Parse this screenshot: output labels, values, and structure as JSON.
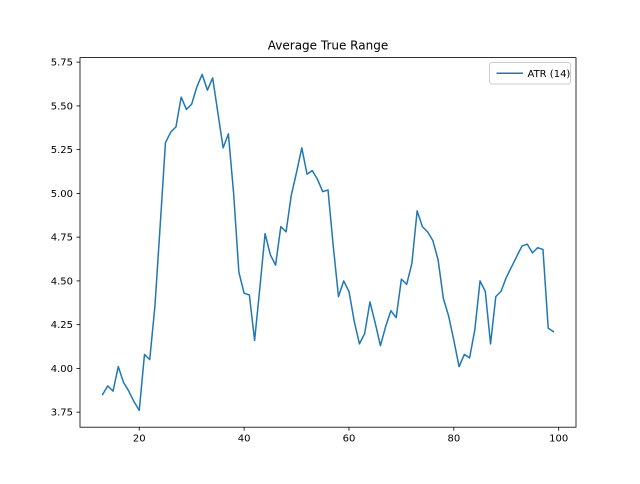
{
  "chart_data": {
    "type": "line",
    "title": "Average True Range",
    "xlabel": "",
    "ylabel": "",
    "xlim": [
      8.7,
      103.3
    ],
    "ylim": [
      3.664,
      5.776
    ],
    "x_ticks": [
      20,
      40,
      60,
      80,
      100
    ],
    "y_ticks": [
      3.75,
      4.0,
      4.25,
      4.5,
      4.75,
      5.0,
      5.25,
      5.5,
      5.75
    ],
    "grid": false,
    "legend_position": "upper right",
    "series": [
      {
        "name": "ATR (14)",
        "color": "#1f77b4",
        "x": [
          13,
          14,
          15,
          16,
          17,
          18,
          19,
          20,
          21,
          22,
          23,
          24,
          25,
          26,
          27,
          28,
          29,
          30,
          31,
          32,
          33,
          34,
          35,
          36,
          37,
          38,
          39,
          40,
          41,
          42,
          43,
          44,
          45,
          46,
          47,
          48,
          49,
          50,
          51,
          52,
          53,
          54,
          55,
          56,
          57,
          58,
          59,
          60,
          61,
          62,
          63,
          64,
          65,
          66,
          67,
          68,
          69,
          70,
          71,
          72,
          73,
          74,
          75,
          76,
          77,
          78,
          79,
          80,
          81,
          82,
          83,
          84,
          85,
          86,
          87,
          88,
          89,
          90,
          91,
          92,
          93,
          94,
          95,
          96,
          97,
          98,
          99
        ],
        "y": [
          3.85,
          3.9,
          3.87,
          4.01,
          3.92,
          3.87,
          3.81,
          3.76,
          4.08,
          4.05,
          4.36,
          4.82,
          5.29,
          5.35,
          5.38,
          5.55,
          5.48,
          5.51,
          5.61,
          5.68,
          5.59,
          5.66,
          5.46,
          5.26,
          5.34,
          5.0,
          4.55,
          4.43,
          4.42,
          4.16,
          4.46,
          4.77,
          4.65,
          4.59,
          4.81,
          4.78,
          4.99,
          5.12,
          5.26,
          5.11,
          5.13,
          5.08,
          5.01,
          5.02,
          4.7,
          4.41,
          4.5,
          4.44,
          4.27,
          4.14,
          4.2,
          4.38,
          4.26,
          4.13,
          4.24,
          4.33,
          4.29,
          4.51,
          4.48,
          4.6,
          4.9,
          4.81,
          4.78,
          4.73,
          4.62,
          4.4,
          4.3,
          4.16,
          4.01,
          4.08,
          4.06,
          4.22,
          4.5,
          4.44,
          4.14,
          4.41,
          4.44,
          4.52,
          4.58,
          4.64,
          4.7,
          4.71,
          4.66,
          4.69,
          4.68,
          4.23,
          4.21
        ]
      }
    ]
  },
  "legend": {
    "entries": [
      {
        "label": "ATR (14)",
        "color": "#1f77b4"
      }
    ]
  },
  "colors": {
    "line": "#1f77b4",
    "background": "#ffffff",
    "spine": "#000000",
    "legend_border": "#cccccc"
  }
}
